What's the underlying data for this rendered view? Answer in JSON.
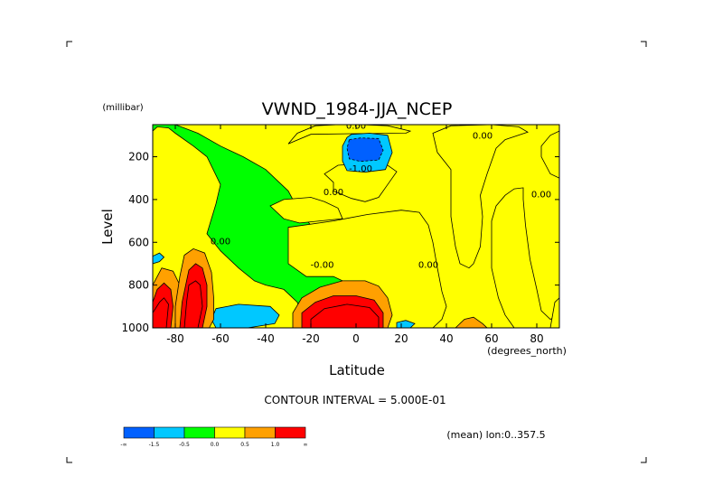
{
  "chart_data": {
    "type": "heatmap",
    "title": "VWND_1984-JJA_NCEP",
    "xlabel": "Latitude",
    "x_units": "(degrees_north)",
    "ylabel": "Level",
    "y_units": "(millibar)",
    "xlim": [
      -90,
      90
    ],
    "ylim": [
      1000,
      50
    ],
    "x_ticks": [
      -80,
      -60,
      -40,
      -20,
      0,
      20,
      40,
      60,
      80
    ],
    "x_tick_labels": [
      "-80",
      "-60",
      "-40",
      "-20",
      "0",
      "20",
      "40",
      "60",
      "80"
    ],
    "y_ticks": [
      200,
      400,
      600,
      800,
      1000
    ],
    "y_tick_labels": [
      "200",
      "400",
      "600",
      "800",
      "1000"
    ],
    "contour_interval_text": "CONTOUR INTERVAL = 5.000E-01",
    "mean_text": "(mean) lon:0..357.5",
    "contour_labels": [
      {
        "text": "0.00",
        "x": 0,
        "y": 70
      },
      {
        "text": "0.00",
        "x": 56,
        "y": 115
      },
      {
        "text": "-1.00",
        "x": 2,
        "y": 270
      },
      {
        "text": "0.00",
        "x": -10,
        "y": 380
      },
      {
        "text": "0.00",
        "x": -60,
        "y": 610
      },
      {
        "text": "-0.00",
        "x": -15,
        "y": 720
      },
      {
        "text": "0.00",
        "x": 32,
        "y": 720
      },
      {
        "text": "0.00",
        "x": 82,
        "y": 390
      }
    ],
    "legend": {
      "colors": [
        "#0060ff",
        "#00c8ff",
        "#00ff00",
        "#ffff00",
        "#ffa000",
        "#ff0000"
      ],
      "labels": [
        "-∞",
        "-1.5",
        "-0.5",
        "0.0",
        "0.5",
        "1.0",
        "∞"
      ]
    },
    "regions": [
      {
        "level": 0,
        "pts": [
          [
            -90,
            50
          ],
          [
            -80,
            50
          ],
          [
            -70,
            90
          ],
          [
            -60,
            150
          ],
          [
            -50,
            200
          ],
          [
            -40,
            260
          ],
          [
            -30,
            360
          ],
          [
            -25,
            460
          ],
          [
            -20,
            520
          ],
          [
            -10,
            580
          ],
          [
            0,
            620
          ],
          [
            8,
            680
          ],
          [
            15,
            760
          ],
          [
            20,
            840
          ],
          [
            22,
            920
          ],
          [
            20,
            1000
          ],
          [
            -90,
            1000
          ]
        ]
      },
      {
        "level": 1,
        "pts": [
          [
            -90,
            80
          ],
          [
            -88,
            60
          ],
          [
            -83,
            65
          ],
          [
            -80,
            90
          ],
          [
            -72,
            150
          ],
          [
            -66,
            200
          ],
          [
            -60,
            330
          ],
          [
            -62,
            420
          ],
          [
            -66,
            560
          ],
          [
            -60,
            640
          ],
          [
            -52,
            720
          ],
          [
            -45,
            780
          ],
          [
            -40,
            800
          ],
          [
            -32,
            820
          ],
          [
            -26,
            880
          ],
          [
            -22,
            1000
          ],
          [
            -90,
            1000
          ]
        ]
      },
      {
        "level": 1,
        "pts": [
          [
            -30,
            140
          ],
          [
            -26,
            90
          ],
          [
            -18,
            55
          ],
          [
            -8,
            50
          ],
          [
            2,
            50
          ],
          [
            14,
            55
          ],
          [
            24,
            80
          ],
          [
            22,
            90
          ],
          [
            2,
            92
          ],
          [
            -20,
            95
          ],
          [
            -30,
            140
          ]
        ]
      },
      {
        "level": 1,
        "pts": [
          [
            -10,
            320
          ],
          [
            -14,
            280
          ],
          [
            -8,
            240
          ],
          [
            4,
            230
          ],
          [
            14,
            240
          ],
          [
            18,
            270
          ],
          [
            14,
            330
          ],
          [
            10,
            390
          ],
          [
            4,
            410
          ],
          [
            -2,
            395
          ],
          [
            -10,
            360
          ],
          [
            -10,
            320
          ]
        ]
      },
      {
        "level": 1,
        "pts": [
          [
            -38,
            430
          ],
          [
            -32,
            400
          ],
          [
            -20,
            390
          ],
          [
            -14,
            410
          ],
          [
            -8,
            440
          ],
          [
            -6,
            490
          ],
          [
            -16,
            500
          ],
          [
            -25,
            510
          ],
          [
            -32,
            490
          ],
          [
            -38,
            430
          ]
        ]
      },
      {
        "level": 1,
        "pts": [
          [
            -30,
            530
          ],
          [
            -10,
            500
          ],
          [
            5,
            470
          ],
          [
            20,
            450
          ],
          [
            28,
            460
          ],
          [
            32,
            520
          ],
          [
            34,
            600
          ],
          [
            36,
            720
          ],
          [
            38,
            830
          ],
          [
            40,
            900
          ],
          [
            38,
            960
          ],
          [
            34,
            1000
          ],
          [
            14,
            1000
          ],
          [
            8,
            880
          ],
          [
            -2,
            800
          ],
          [
            -10,
            760
          ],
          [
            -22,
            760
          ],
          [
            -30,
            700
          ],
          [
            -30,
            620
          ],
          [
            -30,
            530
          ]
        ]
      },
      {
        "level": 1,
        "pts": [
          [
            42,
            260
          ],
          [
            36,
            180
          ],
          [
            34,
            90
          ],
          [
            42,
            55
          ],
          [
            60,
            50
          ],
          [
            72,
            60
          ],
          [
            76,
            85
          ],
          [
            66,
            120
          ],
          [
            62,
            160
          ],
          [
            58,
            280
          ],
          [
            55,
            380
          ],
          [
            56,
            480
          ],
          [
            55,
            620
          ],
          [
            52,
            700
          ],
          [
            50,
            720
          ],
          [
            46,
            700
          ],
          [
            44,
            620
          ],
          [
            42,
            480
          ],
          [
            42,
            360
          ],
          [
            42,
            260
          ]
        ]
      },
      {
        "level": 1,
        "pts": [
          [
            60,
            500
          ],
          [
            62,
            430
          ],
          [
            66,
            380
          ],
          [
            70,
            350
          ],
          [
            74,
            345
          ],
          [
            74,
            400
          ],
          [
            75,
            520
          ],
          [
            77,
            680
          ],
          [
            80,
            820
          ],
          [
            82,
            920
          ],
          [
            86,
            960
          ],
          [
            90,
            940
          ],
          [
            90,
            1000
          ],
          [
            70,
            1000
          ],
          [
            66,
            940
          ],
          [
            63,
            860
          ],
          [
            60,
            720
          ],
          [
            60,
            500
          ]
        ]
      },
      {
        "level": 1,
        "pts": [
          [
            82,
            150
          ],
          [
            86,
            100
          ],
          [
            90,
            80
          ],
          [
            90,
            300
          ],
          [
            86,
            280
          ],
          [
            82,
            200
          ],
          [
            82,
            150
          ]
        ]
      },
      {
        "level": 1,
        "pts": [
          [
            88,
            880
          ],
          [
            90,
            860
          ],
          [
            90,
            1000
          ],
          [
            86,
            1000
          ],
          [
            88,
            880
          ]
        ]
      },
      {
        "level": 2,
        "pts": [
          [
            -62,
            910
          ],
          [
            -52,
            890
          ],
          [
            -38,
            900
          ],
          [
            -34,
            940
          ],
          [
            -36,
            980
          ],
          [
            -48,
            1000
          ],
          [
            -62,
            1000
          ],
          [
            -64,
            960
          ],
          [
            -62,
            910
          ]
        ]
      },
      {
        "level": 2,
        "pts": [
          [
            -90,
            665
          ],
          [
            -87,
            650
          ],
          [
            -85,
            670
          ],
          [
            -87,
            690
          ],
          [
            -90,
            700
          ]
        ]
      },
      {
        "level": 2,
        "pts": [
          [
            -4,
            110
          ],
          [
            -2,
            95
          ],
          [
            6,
            90
          ],
          [
            14,
            100
          ],
          [
            16,
            180
          ],
          [
            13,
            260
          ],
          [
            4,
            272
          ],
          [
            -4,
            265
          ],
          [
            -6,
            220
          ],
          [
            -6,
            150
          ],
          [
            -4,
            110
          ]
        ]
      },
      {
        "level": 2,
        "pts": [
          [
            18,
            975
          ],
          [
            22,
            965
          ],
          [
            26,
            980
          ],
          [
            24,
            1000
          ],
          [
            18,
            1000
          ]
        ]
      },
      {
        "level": 3,
        "pts": [
          [
            -88,
            760
          ],
          [
            -86,
            720
          ],
          [
            -81,
            735
          ],
          [
            -78,
            800
          ],
          [
            -78,
            900
          ],
          [
            -80,
            1000
          ],
          [
            -90,
            1000
          ],
          [
            -90,
            800
          ],
          [
            -88,
            760
          ]
        ]
      },
      {
        "level": 3,
        "pts": [
          [
            -76,
            660
          ],
          [
            -72,
            630
          ],
          [
            -67,
            650
          ],
          [
            -64,
            740
          ],
          [
            -63,
            860
          ],
          [
            -63,
            960
          ],
          [
            -65,
            1000
          ],
          [
            -80,
            1000
          ],
          [
            -80,
            900
          ],
          [
            -78,
            760
          ],
          [
            -76,
            660
          ]
        ]
      },
      {
        "level": 3,
        "pts": [
          [
            -28,
            930
          ],
          [
            -24,
            860
          ],
          [
            -16,
            810
          ],
          [
            -6,
            780
          ],
          [
            4,
            780
          ],
          [
            10,
            805
          ],
          [
            14,
            860
          ],
          [
            16,
            940
          ],
          [
            14,
            1000
          ],
          [
            -28,
            1000
          ],
          [
            -28,
            930
          ]
        ]
      },
      {
        "level": 3,
        "pts": [
          [
            44,
            1000
          ],
          [
            48,
            960
          ],
          [
            52,
            950
          ],
          [
            56,
            980
          ],
          [
            58,
            1000
          ]
        ]
      },
      {
        "level": 4,
        "pts": [
          [
            -88,
            820
          ],
          [
            -85,
            790
          ],
          [
            -82,
            820
          ],
          [
            -81,
            900
          ],
          [
            -82,
            1000
          ],
          [
            -90,
            1000
          ],
          [
            -90,
            880
          ],
          [
            -88,
            820
          ]
        ]
      },
      {
        "level": 4,
        "pts": [
          [
            -74,
            730
          ],
          [
            -71,
            700
          ],
          [
            -68,
            720
          ],
          [
            -66,
            800
          ],
          [
            -66,
            900
          ],
          [
            -68,
            1000
          ],
          [
            -78,
            1000
          ],
          [
            -77,
            880
          ],
          [
            -74,
            730
          ]
        ]
      },
      {
        "level": 4,
        "pts": [
          [
            -24,
            930
          ],
          [
            -18,
            880
          ],
          [
            -10,
            850
          ],
          [
            0,
            850
          ],
          [
            8,
            870
          ],
          [
            12,
            930
          ],
          [
            12,
            1000
          ],
          [
            -24,
            1000
          ],
          [
            -24,
            930
          ]
        ]
      },
      {
        "level": 5,
        "pts": [
          [
            -87,
            880
          ],
          [
            -85,
            860
          ],
          [
            -83,
            890
          ],
          [
            -84,
            1000
          ],
          [
            -90,
            1000
          ],
          [
            -90,
            930
          ],
          [
            -87,
            880
          ]
        ]
      },
      {
        "level": 5,
        "pts": [
          [
            -74,
            800
          ],
          [
            -71,
            780
          ],
          [
            -69,
            800
          ],
          [
            -68,
            900
          ],
          [
            -70,
            1000
          ],
          [
            -76,
            1000
          ],
          [
            -75,
            880
          ],
          [
            -74,
            800
          ]
        ]
      },
      {
        "level": 5,
        "pts": [
          [
            -20,
            960
          ],
          [
            -14,
            910
          ],
          [
            -4,
            890
          ],
          [
            6,
            905
          ],
          [
            10,
            950
          ],
          [
            10,
            1000
          ],
          [
            -20,
            1000
          ],
          [
            -20,
            960
          ]
        ]
      }
    ]
  }
}
